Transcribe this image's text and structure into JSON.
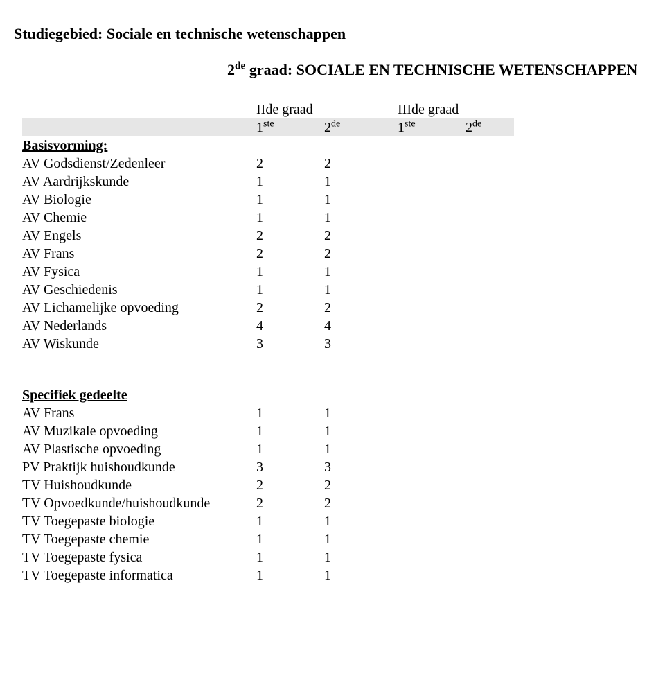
{
  "title_prefix": "Studiegebied",
  "title_rest": ": Sociale en technische wetenschappen",
  "subtitle_ord": "2",
  "subtitle_sup": "de",
  "subtitle_rest": " graad: SOCIALE EN TECHNISCHE WETENSCHAPPEN",
  "header": {
    "col_grad1": "IIde graad",
    "col_grad2": "IIIde graad",
    "c1_ord": "1",
    "c1_sup": "ste",
    "c2_ord": "2",
    "c2_sup": "de",
    "c3_ord": "1",
    "c3_sup": "ste",
    "c4_ord": "2",
    "c4_sup": "de"
  },
  "section1": {
    "heading": "Basisvorming:",
    "rows": [
      {
        "label": "AV Godsdienst/Zedenleer",
        "v1": "2",
        "v2": "2"
      },
      {
        "label": "AV Aardrijkskunde",
        "v1": "1",
        "v2": "1"
      },
      {
        "label": "AV Biologie",
        "v1": "1",
        "v2": "1"
      },
      {
        "label": "AV Chemie",
        "v1": "1",
        "v2": "1"
      },
      {
        "label": "AV Engels",
        "v1": "2",
        "v2": "2"
      },
      {
        "label": "AV Frans",
        "v1": "2",
        "v2": "2"
      },
      {
        "label": "AV Fysica",
        "v1": "1",
        "v2": "1"
      },
      {
        "label": "AV Geschiedenis",
        "v1": "1",
        "v2": "1"
      },
      {
        "label": "AV Lichamelijke opvoeding",
        "v1": "2",
        "v2": "2"
      },
      {
        "label": "AV Nederlands",
        "v1": "4",
        "v2": "4"
      },
      {
        "label": "AV Wiskunde",
        "v1": "3",
        "v2": "3"
      }
    ]
  },
  "section2": {
    "heading": "Specifiek gedeelte",
    "rows": [
      {
        "label": "AV Frans",
        "v1": "1",
        "v2": "1"
      },
      {
        "label": "AV Muzikale opvoeding",
        "v1": "1",
        "v2": "1"
      },
      {
        "label": "AV Plastische opvoeding",
        "v1": "1",
        "v2": "1"
      },
      {
        "label": "PV Praktijk huishoudkunde",
        "v1": "3",
        "v2": "3"
      },
      {
        "label": "TV Huishoudkunde",
        "v1": "2",
        "v2": "2"
      },
      {
        "label": "TV Opvoedkunde/huishoudkunde",
        "v1": "2",
        "v2": "2"
      },
      {
        "label": "TV Toegepaste biologie",
        "v1": "1",
        "v2": "1"
      },
      {
        "label": "TV Toegepaste chemie",
        "v1": "1",
        "v2": "1"
      },
      {
        "label": "TV Toegepaste fysica",
        "v1": "1",
        "v2": "1"
      },
      {
        "label": "TV Toegepaste informatica",
        "v1": "1",
        "v2": "1"
      }
    ]
  }
}
